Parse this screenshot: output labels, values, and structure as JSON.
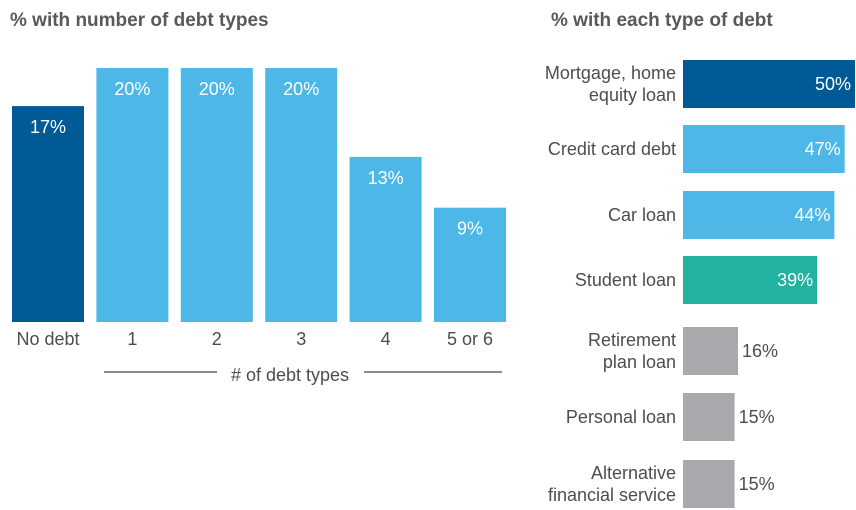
{
  "chart_data": [
    {
      "type": "bar",
      "orientation": "vertical",
      "title": "% with number of debt types",
      "xlabel": "# of debt types",
      "ylabel": "",
      "unit": "%",
      "ylim": [
        0,
        20
      ],
      "categories": [
        "No debt",
        "1",
        "2",
        "3",
        "4",
        "5 or 6"
      ],
      "values": [
        17,
        20,
        20,
        20,
        13,
        9
      ],
      "value_labels": [
        "17%",
        "20%",
        "20%",
        "20%",
        "13%",
        "9%"
      ],
      "colors": [
        "#005a96",
        "#4db8e8",
        "#4db8e8",
        "#4db8e8",
        "#4db8e8",
        "#4db8e8"
      ],
      "grid": false,
      "legend": "none"
    },
    {
      "type": "bar",
      "orientation": "horizontal",
      "title": "% with each type of debt",
      "xlabel": "",
      "ylabel": "",
      "unit": "%",
      "xlim": [
        0,
        50
      ],
      "categories": [
        [
          "Mortgage, home",
          "equity loan"
        ],
        [
          "Credit card debt"
        ],
        [
          "Car loan"
        ],
        [
          "Student loan"
        ],
        [
          "Retirement",
          "plan loan"
        ],
        [
          "Personal loan"
        ],
        [
          "Alternative",
          "financial service"
        ]
      ],
      "values": [
        50,
        47,
        44,
        39,
        16,
        15,
        15
      ],
      "value_labels": [
        "50%",
        "47%",
        "44%",
        "39%",
        "16%",
        "15%",
        "15%"
      ],
      "colors": [
        "#005a96",
        "#4db8e8",
        "#4db8e8",
        "#21b2a0",
        "#a8a9ad",
        "#a8a9ad",
        "#a8a9ad"
      ],
      "grid": false,
      "legend": "none"
    }
  ]
}
